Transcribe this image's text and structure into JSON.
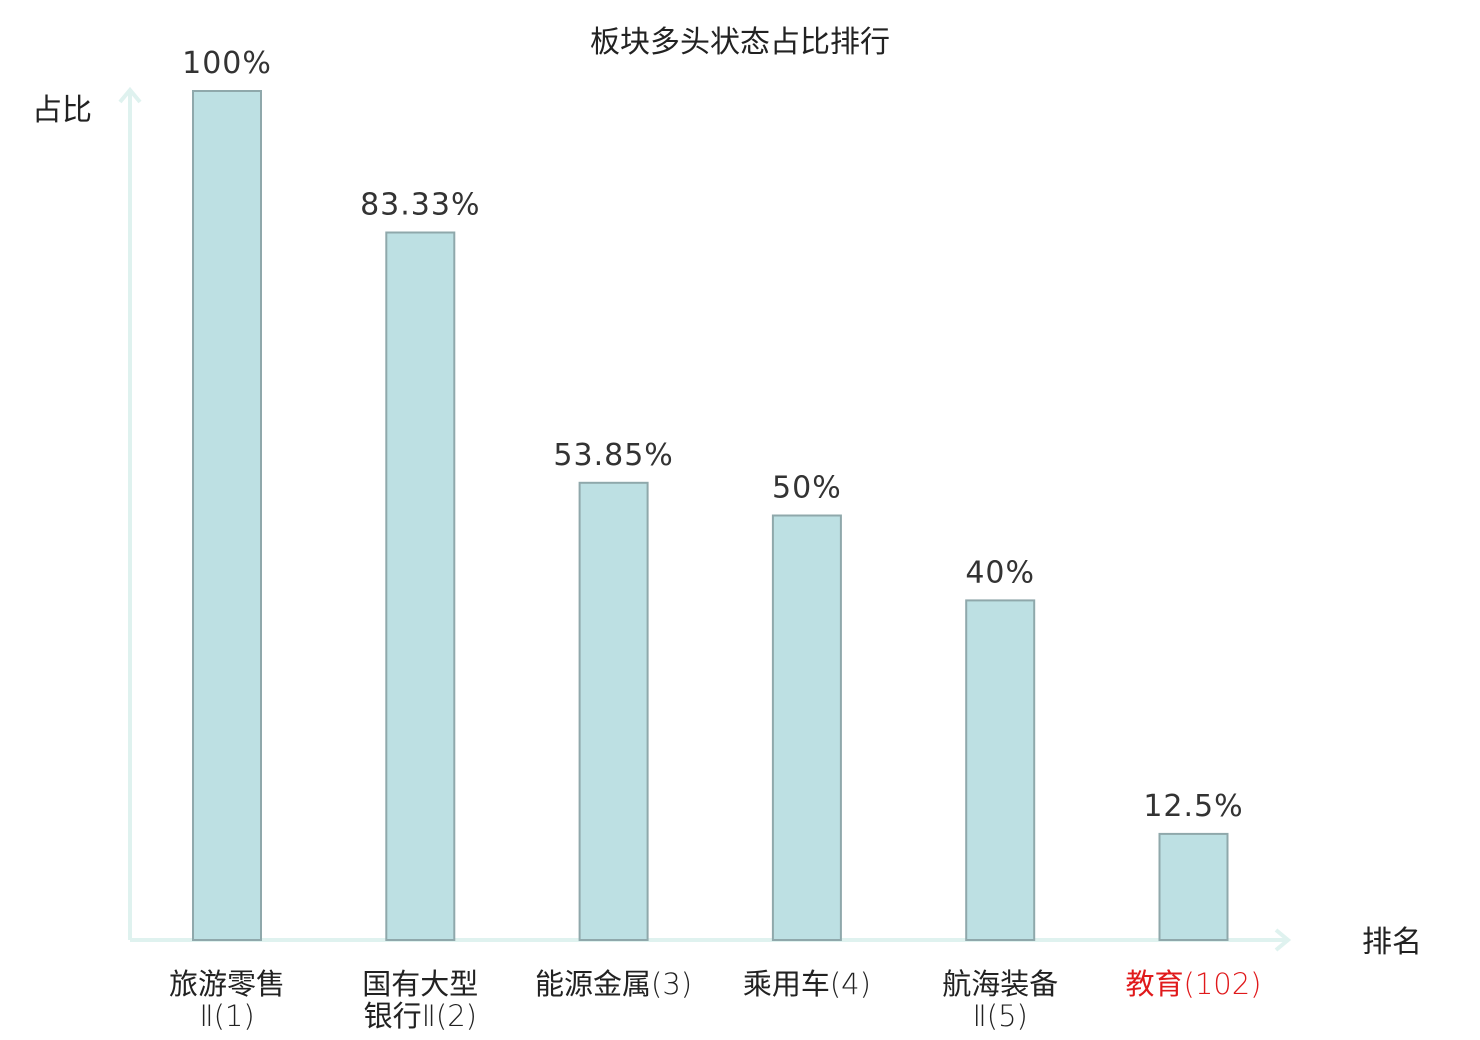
{
  "chart_data": {
    "type": "bar",
    "title": "板块多头状态占比排行",
    "ylabel": "占比",
    "xlabel": "排名",
    "ylim": [
      0,
      100
    ],
    "grid": false,
    "categories": [
      {
        "name_lines": [
          "旅游零售"
        ],
        "rank_prefix": "",
        "rank": "Ⅱ(1)",
        "rank_on_new_line": true,
        "value": 100,
        "label": "100%",
        "highlight": false
      },
      {
        "name_lines": [
          "国有大型"
        ],
        "rank_prefix": "银行",
        "rank": "Ⅱ(2)",
        "rank_on_new_line": true,
        "value": 83.33,
        "label": "83.33%",
        "highlight": false
      },
      {
        "name_lines": [
          "能源金属"
        ],
        "rank_prefix": "",
        "rank": "(3)",
        "rank_on_new_line": false,
        "value": 53.85,
        "label": "53.85%",
        "highlight": false
      },
      {
        "name_lines": [
          "乘用车"
        ],
        "rank_prefix": "",
        "rank": "(4)",
        "rank_on_new_line": false,
        "value": 50,
        "label": "50%",
        "highlight": false
      },
      {
        "name_lines": [
          "航海装备"
        ],
        "rank_prefix": "",
        "rank": "Ⅱ(5)",
        "rank_on_new_line": true,
        "value": 40,
        "label": "40%",
        "highlight": false
      },
      {
        "name_lines": [
          "教育"
        ],
        "rank_prefix": "",
        "rank": "(102)",
        "rank_on_new_line": false,
        "value": 12.5,
        "label": "12.5%",
        "highlight": true
      }
    ],
    "colors": {
      "bar_fill": "#bde0e3",
      "bar_stroke": "#8fa8ab",
      "axis": "#dff2ef",
      "text": "#222222",
      "highlight": "#e0191b"
    }
  }
}
